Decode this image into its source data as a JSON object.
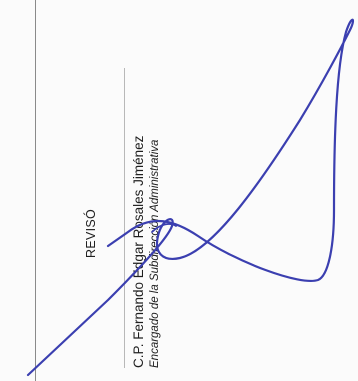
{
  "header": {
    "label": "REVISÓ"
  },
  "signer": {
    "name": "C.P. Fernando Edgar Rosales Jiménez",
    "title": "Encargado de la Subdirección Administrativa"
  },
  "colors": {
    "ink": "#3b3fb0",
    "text": "#1f1f1f"
  }
}
